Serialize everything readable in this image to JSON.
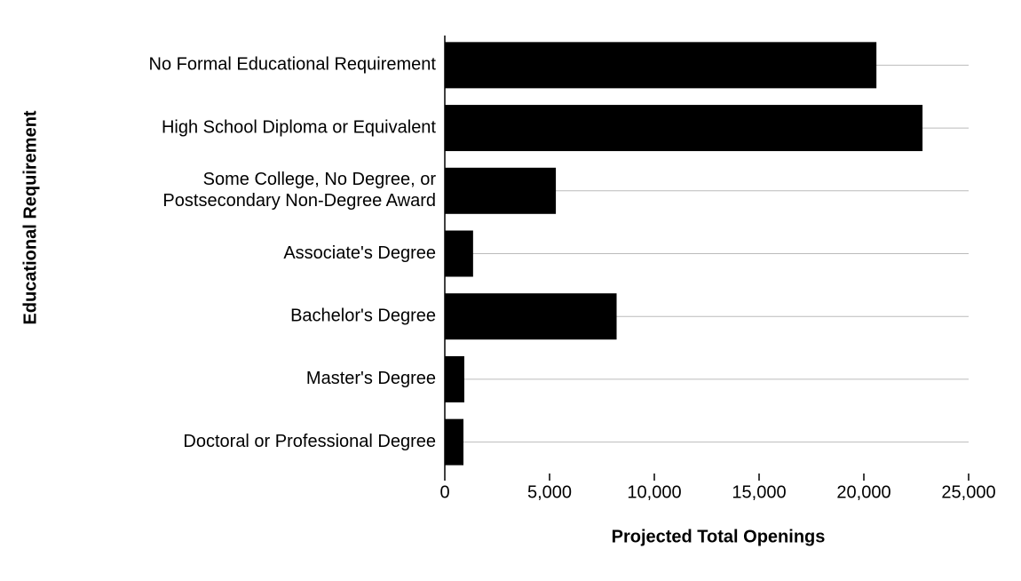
{
  "chart_data": {
    "type": "hbar",
    "categories": [
      "No Formal Educational Requirement",
      "High School Diploma or Equivalent",
      "Some College, No Degree, or\nPostsecondary Non-Degree Award",
      "Associate's Degree",
      "Bachelor's Degree",
      "Master's Degree",
      "Doctoral or Professional Degree"
    ],
    "values": [
      20600,
      22800,
      5300,
      1350,
      8200,
      930,
      890
    ],
    "color": "#000000",
    "xlim": [
      0,
      25000
    ],
    "xticks": [
      0,
      {
        "value": 5000,
        "label": "5,000"
      },
      {
        "value": 10000,
        "label": "10,000"
      },
      {
        "value": 15000,
        "label": "15,000"
      },
      {
        "value": 20000,
        "label": "20,000"
      },
      {
        "value": 25000,
        "label": "25,000"
      }
    ],
    "xlabel": "Projected Total Openings",
    "ylabel": "Educational Requirement",
    "grid": true
  }
}
